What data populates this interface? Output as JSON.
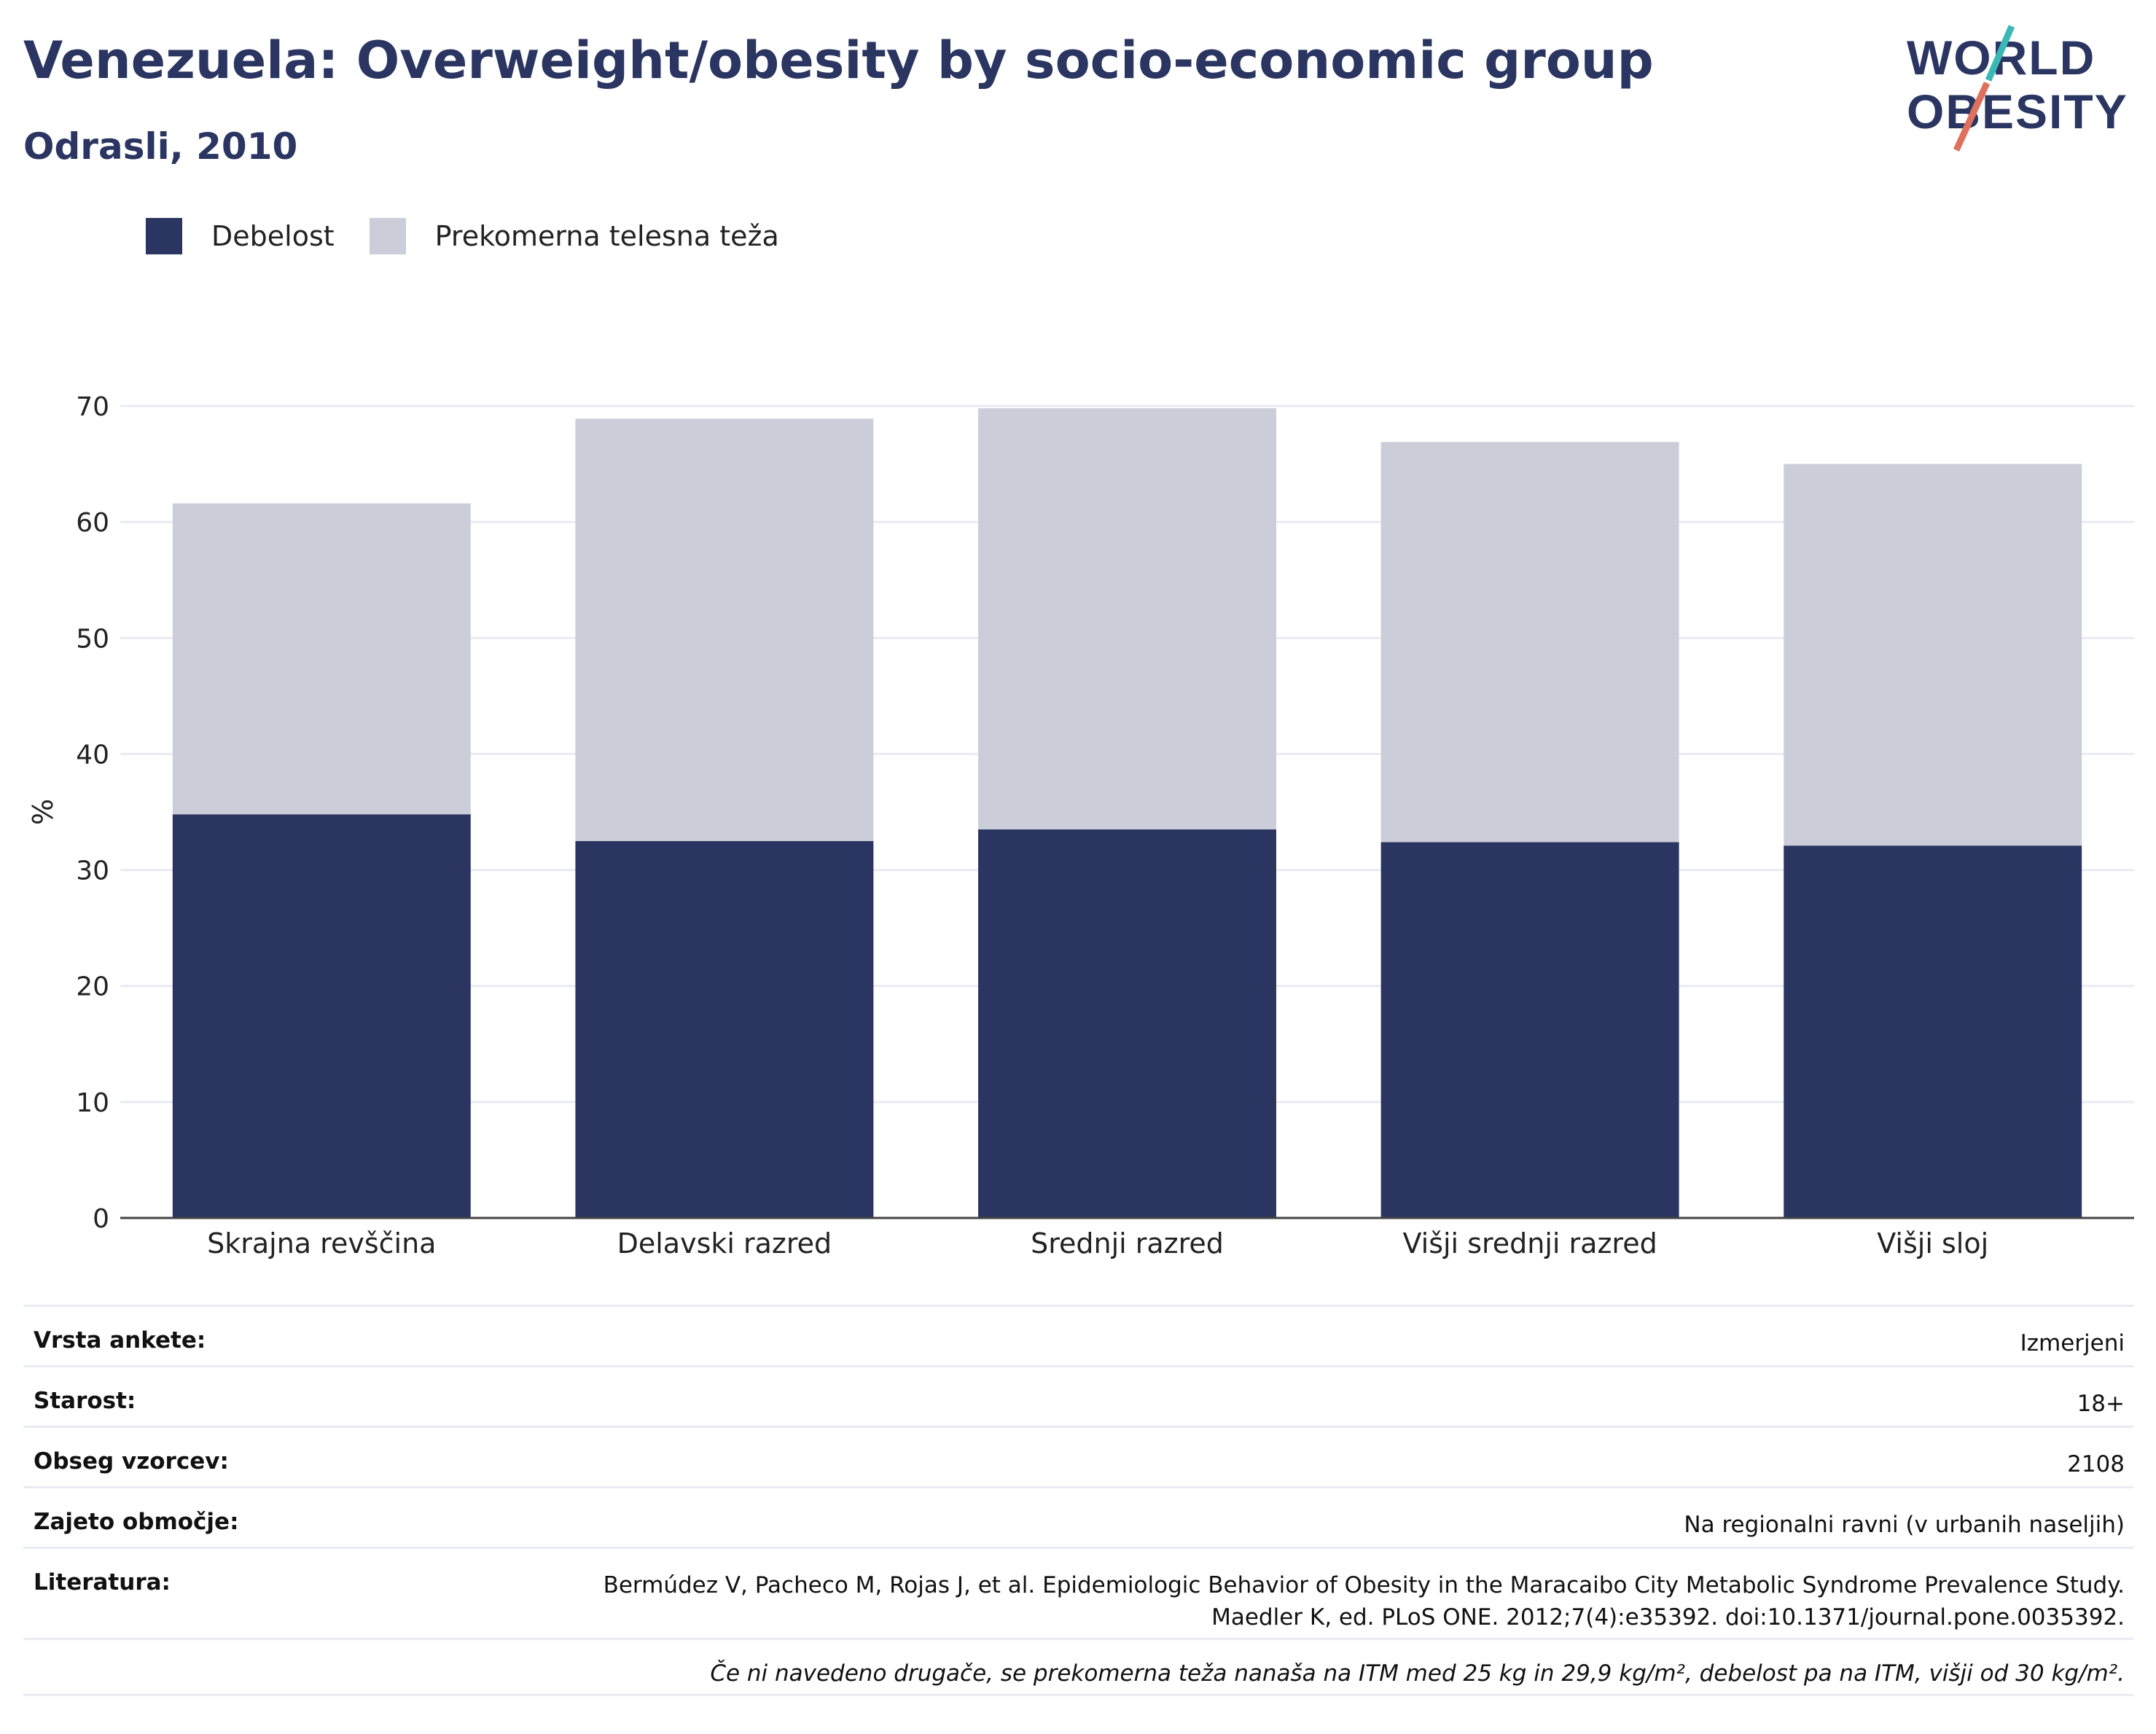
{
  "header": {
    "title": "Venezuela: Overweight/obesity by socio-economic group",
    "subtitle": "Odrasli, 2010"
  },
  "logo": {
    "line1": "WORLD",
    "line2": "OBESITY"
  },
  "colors": {
    "obesity": "#2a3561",
    "overweight": "#cbcdd9",
    "accent_teal": "#3bb8b5",
    "accent_red": "#e0705e"
  },
  "legend": [
    {
      "label": "Debelost"
    },
    {
      "label": "Prekomerna telesna teža"
    }
  ],
  "chart_data": {
    "type": "bar",
    "stacked": true,
    "categories": [
      "Skrajna revščina",
      "Delavski razred",
      "Srednji razred",
      "Višji srednji razred",
      "Višji sloj"
    ],
    "series": [
      {
        "name": "Debelost",
        "values": [
          34.8,
          32.5,
          33.5,
          32.4,
          32.1
        ]
      },
      {
        "name": "Prekomerna telesna teža",
        "values": [
          26.8,
          36.4,
          36.3,
          34.5,
          32.9
        ]
      }
    ],
    "ylabel": "%",
    "ylim": [
      0,
      70
    ],
    "yticks": [
      0,
      10,
      20,
      30,
      40,
      50,
      60,
      70
    ],
    "grid": true,
    "legend_position": "top-left"
  },
  "meta": {
    "survey_type": {
      "label": "Vrsta ankete:",
      "value": "Izmerjeni"
    },
    "age": {
      "label": "Starost:",
      "value": "18+"
    },
    "sample": {
      "label": "Obseg vzorcev:",
      "value": "2108"
    },
    "area": {
      "label": "Zajeto območje:",
      "value": "Na regionalni ravni (v urbanih naseljih)"
    },
    "reference": {
      "label": "Literatura:",
      "line1": "Bermúdez V, Pacheco M, Rojas J, et al. Epidemiologic Behavior of Obesity in the Maracaibo City Metabolic Syndrome Prevalence Study.",
      "line2": "Maedler K, ed. PLoS ONE. 2012;7(4):e35392. doi:10.1371/journal.pone.0035392."
    },
    "note": "Če ni navedeno drugače, se prekomerna teža nanaša na ITM med 25 kg in 29,9 kg/m², debelost pa na ITM, višji od 30 kg/m²."
  }
}
